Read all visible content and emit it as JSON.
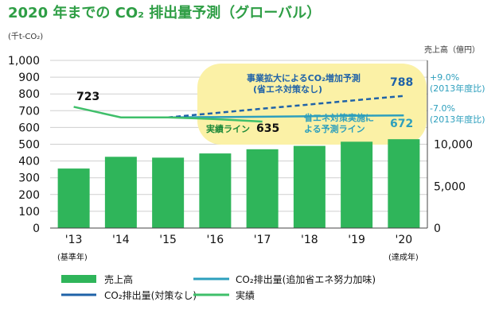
{
  "title": "2020 年までの CO₂ 排出量予測（グローバル）",
  "left_unit": "(千t-CO₂)",
  "right_unit": "売上高（億円）",
  "left_ticks": [
    "1,000",
    "900",
    "800",
    "700",
    "600",
    "500",
    "400",
    "300",
    "200",
    "100",
    "0"
  ],
  "right_ticks": [
    "10,000",
    "5,000",
    "0"
  ],
  "x_notes": {
    "first": "(基準年)",
    "last": "(達成年)"
  },
  "annotations": {
    "bau_line1": "事業拡大によるCO₂増加予測",
    "bau_line2": "(省エネ対策なし)",
    "bau_value": "788",
    "bau_pct": "+9.0%",
    "bau_pct_note": "(2013年度比)",
    "eff_line1": "省エネ対策実施に",
    "eff_line2": "よる予測ライン",
    "eff_value": "672",
    "eff_pct": "-7.0%",
    "eff_pct_note": "(2013年度比)",
    "actual_label": "実績ライン",
    "actual_value": "635",
    "base_value": "723"
  },
  "legend": {
    "sales": "売上高",
    "co2_eff": "CO₂排出量(追加省エネ努力加味)",
    "co2_bau": "CO₂排出量(対策なし)",
    "actual": "実績"
  },
  "colors": {
    "bar": "#2fb55a",
    "actual": "#3fbf6a",
    "bau": "#1f62a8",
    "eff": "#2d9fbd",
    "bubble": "#fbf1a6",
    "title": "#2e9e45"
  },
  "chart_data": {
    "type": "bar",
    "categories": [
      "'13",
      "'14",
      "'15",
      "'16",
      "'17",
      "'18",
      "'19",
      "'20"
    ],
    "left_ylim": [
      0,
      1000
    ],
    "right_ylim": [
      0,
      20000
    ],
    "series": [
      {
        "name": "売上高",
        "axis": "right",
        "values": [
          7100,
          8500,
          8400,
          8900,
          9400,
          9800,
          10300,
          10600
        ]
      },
      {
        "name": "CO₂排出量(対策なし)",
        "axis": "left",
        "x": [
          "'15",
          "'16",
          "'17",
          "'18",
          "'19",
          "'20"
        ],
        "values": [
          660,
          686,
          712,
          737,
          763,
          788
        ]
      },
      {
        "name": "CO₂排出量(追加省エネ努力加味)",
        "axis": "left",
        "x": [
          "'15",
          "'16",
          "'17",
          "'18",
          "'19",
          "'20"
        ],
        "values": [
          660,
          662,
          664,
          667,
          670,
          672
        ]
      },
      {
        "name": "実績",
        "axis": "left",
        "x": [
          "'13",
          "'14",
          "'15",
          "'16",
          "'17"
        ],
        "values": [
          723,
          660,
          660,
          650,
          635
        ]
      }
    ]
  }
}
